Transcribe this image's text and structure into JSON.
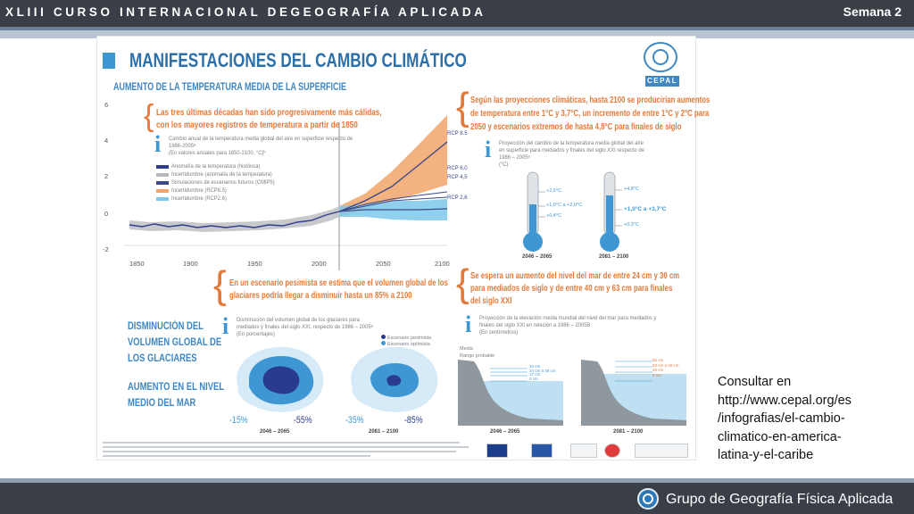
{
  "header": {
    "title": "XLIII CURSO INTERNACIONAL DEGEOGRAFÍA APLICADA",
    "week": "Semana 2"
  },
  "footer": {
    "group": "Grupo de Geografía Física Aplicada",
    "logo_icon": "globe-logo-icon"
  },
  "consult": {
    "lines": [
      "Consultar en",
      "http://www.cepal.org/es",
      "/infografias/el-cambio-",
      "climatico-en-america-",
      "latina-y-el-caribe"
    ]
  },
  "infographic": {
    "title": "MANIFESTACIONES DEL CAMBIO CLIMÁTICO",
    "logo_text": "CEPAL",
    "temp": {
      "heading": "AUMENTO DE LA TEMPERATURA MEDIA DE LA SUPERFICIE",
      "note_lines": [
        "Las tres últimas décadas han sido progresivamente más cálidas,",
        "con los mayores registros de temperatura a partir de 1850"
      ],
      "info_lines": [
        "Cambio anual de la temperatura media global del aire en superficie respecto de",
        "1986-2005ᵃ",
        "(En valores anuales para 1850-2100, °C)ᵇ"
      ],
      "legend": [
        {
          "label": "Anomalía de la temperatura (histórica)",
          "color": "#2f3d8f"
        },
        {
          "label": "Incertidumbre (anomalía de la temperatura)",
          "color": "#b5b8bd"
        },
        {
          "label": "Simulaciones de escenarios futuros (CMIP5)",
          "color": "#3a4a88"
        },
        {
          "label": "Incertidumbre (RCP8.5)",
          "color": "#f2a46a"
        },
        {
          "label": "Incertidumbre (RCP2.6)",
          "color": "#7ec8ea"
        }
      ],
      "y_ticks": [
        "6",
        "4",
        "2",
        "0",
        "-2"
      ],
      "x_ticks": [
        "1850",
        "1900",
        "1950",
        "2000",
        "2050",
        "2100"
      ],
      "scenario_labels": [
        "RCP 8.5",
        "RCP 6,0",
        "RCP 4,5",
        "RCP 2,6"
      ],
      "projection_lines": [
        "Según las proyecciones climáticas, hasta 2100 se producirían aumentos",
        "de temperatura entre 1°C y 3,7°C, un incremento de entre 1°C y 2°C para",
        "2050 y escenarios extremos de hasta 4,8°C para finales de siglo"
      ],
      "thermo_info_lines": [
        "Proyección del cambio de la temperatura media global del aire",
        "en superficie para mediados y finales del siglo XXI respecto de",
        "1986 – 2005ᵃ",
        "(°C)"
      ],
      "thermometers": [
        {
          "period": "2046 – 2065",
          "labels": [
            "+2,6°C",
            "+1,0°C a +2,0°C",
            "+0,4°C"
          ],
          "fill": 0.45
        },
        {
          "period": "2081 – 2100",
          "labels": [
            "+4,8°C",
            "+1,0°C a +3,7°C",
            "+0,3°C"
          ],
          "fill": 0.6
        }
      ]
    },
    "glacier": {
      "note_lines": [
        "En un escenario pesimista se estima que el volumen global de los",
        "glaciares podría llegar a disminuir hasta un 85% a 2100"
      ],
      "heading_lines": [
        "DISMINUCIÓN DEL",
        "VOLUMEN GLOBAL DE",
        "LOS GLACIARES"
      ],
      "info_lines": [
        "Disminución del volumen global de los glaciares para",
        "mediados y finales del siglo XXI, respecto de 1986 – 2005ᵃ",
        "(En porcentajes)"
      ],
      "legend": [
        "Escenario pesimista",
        "Escenario optimista"
      ],
      "periods": [
        {
          "period": "2046 – 2065",
          "optimista": "-15%",
          "pesimista": "-55%"
        },
        {
          "period": "2081 – 2100",
          "optimista": "-35%",
          "pesimista": "-85%"
        }
      ]
    },
    "sea": {
      "heading_lines": [
        "AUMENTO EN EL NIVEL",
        "MEDIO DEL MAR"
      ],
      "note_lines": [
        "Se espera un aumento del nivel del mar de entre 24 cm y 30 cm",
        "para mediados de siglo y de entre 40 cm y 63 cm para finales",
        "del siglo XXI"
      ],
      "info_lines": [
        "Proyección de la elevación media mundial del nivel del mar para mediados y",
        "finales del siglo XXI en relación a 1986 – 2005B",
        "(En centímetros)"
      ],
      "legend": [
        "Media",
        "Rango probable"
      ],
      "periods": [
        {
          "period": "2046 – 2065",
          "labels": [
            "32 cm",
            "24 cm a 30 cm",
            "17 cm",
            "0 cm"
          ]
        },
        {
          "period": "2081 – 2100",
          "labels": [
            "82 cm",
            "63 cm a 40 cm",
            "26 cm",
            "0 cm"
          ]
        }
      ]
    }
  }
}
